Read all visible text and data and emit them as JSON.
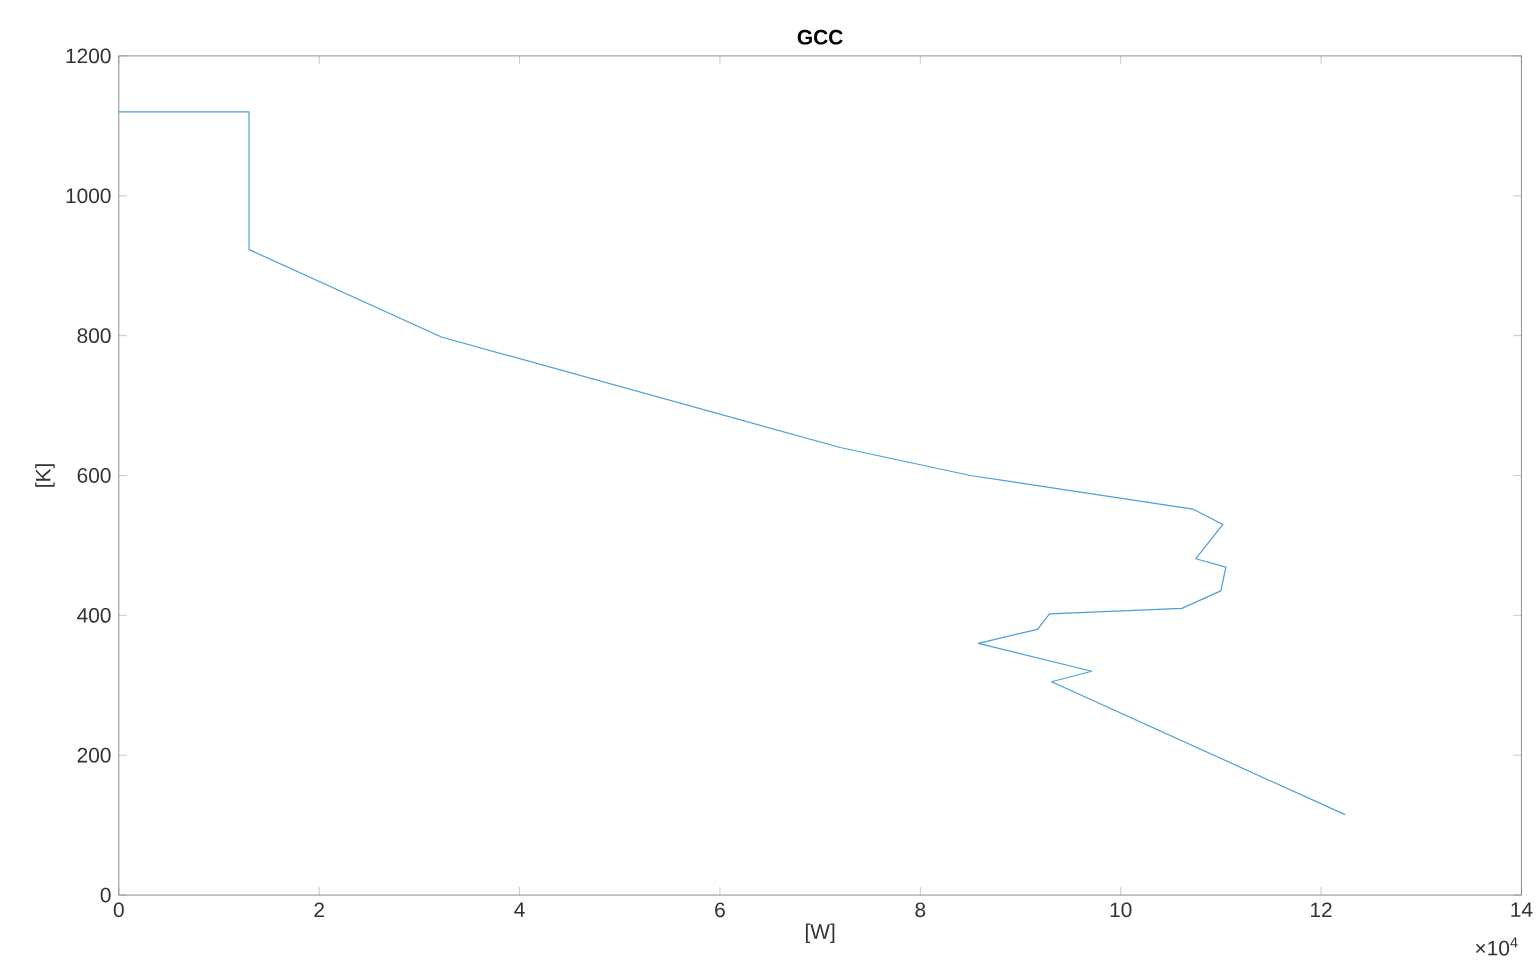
{
  "chart_data": {
    "type": "line",
    "title": "GCC",
    "xlabel": "[W]",
    "ylabel": "[K]",
    "annotations": [
      "×10$^{4}$"
    ],
    "series": [
      {
        "color": "#4d9fd6",
        "x": [
          0,
          1.3,
          1.3,
          3.22,
          7.2,
          8.5,
          10.72,
          11.02,
          10.75,
          11.05,
          11.0,
          10.61,
          9.29,
          9.17,
          8.58,
          9.71,
          9.31,
          12.24
        ],
        "values": [
          1120,
          1120,
          923,
          798,
          640,
          600,
          552,
          530,
          481,
          469,
          435,
          410,
          402,
          380,
          360,
          320,
          305,
          115
        ]
      }
    ],
    "xlim": [
      0,
      14
    ],
    "ylim": [
      0,
      1200
    ],
    "xticks": [
      0,
      2,
      4,
      6,
      8,
      10,
      12,
      14
    ],
    "yticks": [
      0,
      200,
      400,
      600,
      800,
      1000,
      1200
    ],
    "grid": false,
    "marker": "none",
    "line_style": "solid"
  }
}
